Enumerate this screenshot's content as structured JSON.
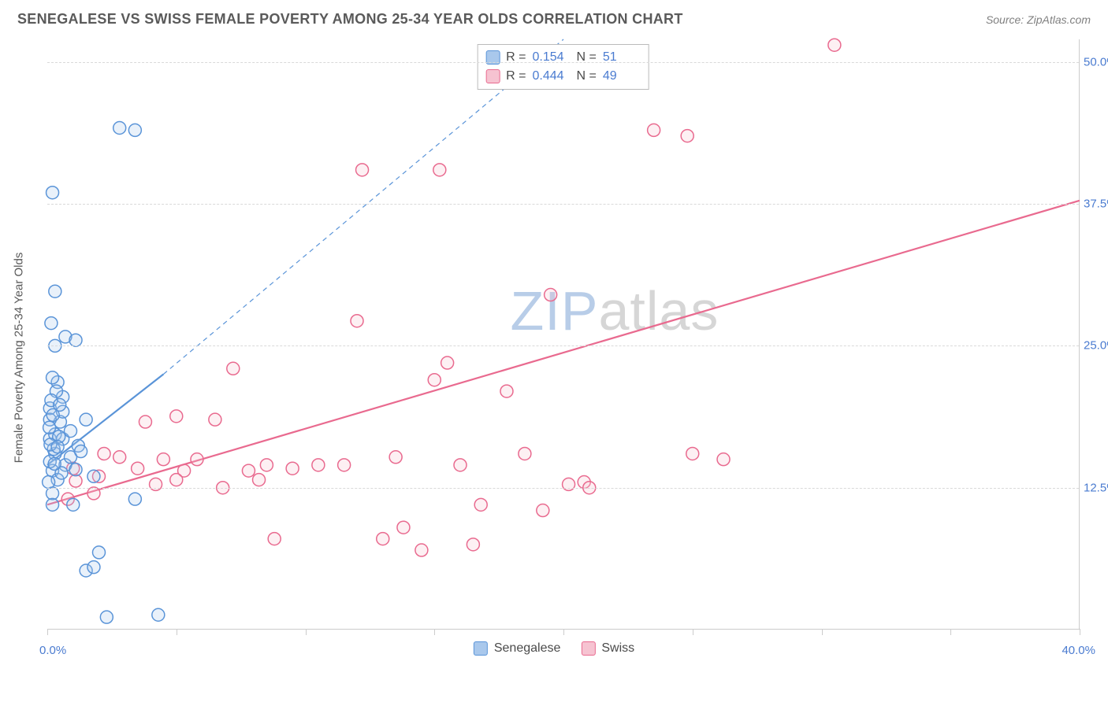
{
  "title": "SENEGALESE VS SWISS FEMALE POVERTY AMONG 25-34 YEAR OLDS CORRELATION CHART",
  "source": "Source: ZipAtlas.com",
  "yaxis_title": "Female Poverty Among 25-34 Year Olds",
  "watermark_prefix": "ZIP",
  "watermark_suffix": "atlas",
  "legend": {
    "series_a": "Senegalese",
    "series_b": "Swiss"
  },
  "stats": {
    "r_label": "R =",
    "n_label": "N =",
    "a": {
      "r": "0.154",
      "n": "51"
    },
    "b": {
      "r": "0.444",
      "n": "49"
    }
  },
  "chart": {
    "type": "scatter",
    "xlim": [
      0,
      40
    ],
    "ylim": [
      0,
      52
    ],
    "yticks": [
      12.5,
      25.0,
      37.5,
      50.0
    ],
    "ytick_labels": [
      "12.5%",
      "25.0%",
      "37.5%",
      "50.0%"
    ],
    "xticks": [
      0,
      5,
      10,
      15,
      20,
      25,
      30,
      35,
      40
    ],
    "xaxis_min_label": "0.0%",
    "xaxis_max_label": "40.0%",
    "grid_color": "#d9d9d9",
    "axis_color": "#cccccc",
    "background_color": "#ffffff",
    "tick_font_color": "#4a7bd0",
    "tick_fontsize": 15,
    "title_fontsize": 18,
    "title_color": "#5a5a5a",
    "marker_radius": 8,
    "series": {
      "senegalese": {
        "fill": "#a9c8ec",
        "stroke": "#5a94d8",
        "trend_solid": {
          "x1": 0,
          "y1": 14.5,
          "x2": 4.5,
          "y2": 22.5,
          "width": 2.2
        },
        "trend_dash": {
          "x1": 4.5,
          "y1": 22.5,
          "x2": 20,
          "y2": 52,
          "width": 1.2,
          "dash": "6,5"
        },
        "points": [
          [
            0.2,
            14
          ],
          [
            0.3,
            15.5
          ],
          [
            0.1,
            16.8
          ],
          [
            0.4,
            13.2
          ],
          [
            0.2,
            12
          ],
          [
            0.7,
            14.5
          ],
          [
            0.3,
            17.2
          ],
          [
            0.5,
            18.3
          ],
          [
            0.1,
            19.5
          ],
          [
            0.6,
            20.5
          ],
          [
            0.4,
            21.8
          ],
          [
            0.2,
            22.2
          ],
          [
            0.9,
            15.2
          ],
          [
            1.1,
            14.1
          ],
          [
            0.2,
            11
          ],
          [
            1.8,
            13.5
          ],
          [
            1.5,
            18.5
          ],
          [
            0.3,
            25.0
          ],
          [
            0.7,
            25.8
          ],
          [
            1.1,
            25.5
          ],
          [
            0.15,
            27.0
          ],
          [
            0.3,
            29.8
          ],
          [
            0.2,
            38.5
          ],
          [
            2.8,
            44.2
          ],
          [
            3.4,
            44.0
          ],
          [
            1.5,
            5.2
          ],
          [
            1.8,
            5.5
          ],
          [
            2.0,
            6.8
          ],
          [
            4.3,
            1.3
          ],
          [
            2.3,
            1.1
          ],
          [
            3.4,
            11.5
          ],
          [
            1.2,
            16.2
          ],
          [
            0.6,
            16.8
          ],
          [
            0.9,
            17.5
          ],
          [
            0.1,
            18.5
          ],
          [
            0.25,
            15.9
          ],
          [
            0.45,
            17.0
          ],
          [
            0.55,
            13.8
          ],
          [
            0.1,
            14.8
          ],
          [
            0.35,
            21.0
          ],
          [
            0.15,
            20.2
          ],
          [
            0.05,
            13.0
          ],
          [
            1.0,
            11.0
          ],
          [
            0.6,
            19.2
          ],
          [
            0.12,
            16.3
          ],
          [
            0.28,
            14.6
          ],
          [
            0.4,
            16.1
          ],
          [
            0.08,
            17.8
          ],
          [
            1.3,
            15.7
          ],
          [
            0.48,
            19.8
          ],
          [
            0.22,
            18.9
          ]
        ]
      },
      "swiss": {
        "fill": "#f6c3d1",
        "stroke": "#e96a8f",
        "trend_solid": {
          "x1": 0,
          "y1": 11.0,
          "x2": 40,
          "y2": 37.8,
          "width": 2.2
        },
        "points": [
          [
            1.0,
            14.2
          ],
          [
            1.1,
            13.1
          ],
          [
            2.0,
            13.5
          ],
          [
            2.2,
            15.5
          ],
          [
            2.8,
            15.2
          ],
          [
            3.5,
            14.2
          ],
          [
            4.5,
            15.0
          ],
          [
            3.8,
            18.3
          ],
          [
            5.0,
            18.8
          ],
          [
            5.3,
            14.0
          ],
          [
            5.8,
            15.0
          ],
          [
            5.0,
            13.2
          ],
          [
            6.5,
            18.5
          ],
          [
            7.2,
            23.0
          ],
          [
            7.8,
            14.0
          ],
          [
            8.5,
            14.5
          ],
          [
            8.8,
            8.0
          ],
          [
            9.5,
            14.2
          ],
          [
            8.2,
            13.2
          ],
          [
            10.5,
            14.5
          ],
          [
            11.5,
            14.5
          ],
          [
            12.0,
            27.2
          ],
          [
            12.2,
            40.5
          ],
          [
            13.5,
            15.2
          ],
          [
            13.0,
            8.0
          ],
          [
            14.5,
            7.0
          ],
          [
            15.0,
            22.0
          ],
          [
            15.2,
            40.5
          ],
          [
            15.5,
            23.5
          ],
          [
            16.0,
            14.5
          ],
          [
            16.5,
            7.5
          ],
          [
            17.8,
            21.0
          ],
          [
            18.5,
            15.5
          ],
          [
            19.2,
            10.5
          ],
          [
            19.5,
            29.5
          ],
          [
            20.2,
            12.8
          ],
          [
            20.8,
            13.0
          ],
          [
            21.0,
            12.5
          ],
          [
            23.5,
            44.0
          ],
          [
            24.8,
            43.5
          ],
          [
            25.0,
            15.5
          ],
          [
            26.2,
            15.0
          ],
          [
            30.5,
            51.5
          ],
          [
            4.2,
            12.8
          ],
          [
            6.8,
            12.5
          ],
          [
            1.8,
            12.0
          ],
          [
            0.8,
            11.5
          ],
          [
            13.8,
            9.0
          ],
          [
            16.8,
            11.0
          ]
        ]
      }
    }
  },
  "watermark_colors": {
    "prefix": "#b8cde8",
    "suffix": "#d6d6d6"
  }
}
